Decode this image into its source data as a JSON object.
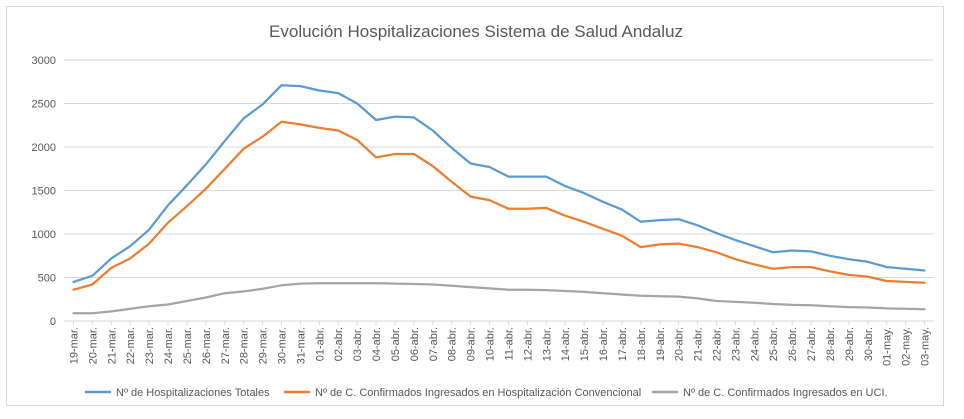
{
  "chart_data": {
    "type": "line",
    "title": "Evolución Hospitalizaciones Sistema de Salud Andaluz",
    "xlabel": "",
    "ylabel": "",
    "ylim": [
      0,
      3000
    ],
    "yticks": [
      0,
      500,
      1000,
      1500,
      2000,
      2500,
      3000
    ],
    "grid": true,
    "legend_position": "bottom",
    "categories": [
      "19-mar.",
      "20-mar.",
      "21-mar.",
      "22-mar.",
      "23-mar.",
      "24-mar.",
      "25-mar.",
      "26-mar.",
      "27-mar.",
      "28-mar.",
      "29-mar.",
      "30-mar.",
      "31-mar.",
      "01-abr.",
      "02-abr.",
      "03-abr.",
      "04-abr.",
      "05-abr.",
      "06-abr.",
      "07-abr.",
      "08-abr.",
      "09-abr.",
      "10-abr.",
      "11-abr.",
      "12-abr.",
      "13-abr.",
      "14-abr.",
      "15-abr.",
      "16-abr.",
      "17-abr.",
      "18-abr.",
      "19-abr.",
      "20-abr.",
      "21-abr.",
      "22-abr.",
      "23-abr.",
      "24-abr.",
      "25-abr.",
      "26-abr.",
      "27-abr.",
      "28-abr.",
      "29-abr.",
      "30-abr.",
      "01-may.",
      "02-may.",
      "03-may."
    ],
    "series": [
      {
        "name": "Nº de Hospitalizaciones Totales",
        "color": "#5b9bd5",
        "values": [
          450,
          520,
          720,
          860,
          1050,
          1330,
          1560,
          1800,
          2070,
          2330,
          2490,
          2710,
          2700,
          2650,
          2620,
          2500,
          2310,
          2350,
          2340,
          2190,
          1990,
          1810,
          1770,
          1660,
          1660,
          1660,
          1550,
          1470,
          1370,
          1280,
          1140,
          1160,
          1170,
          1100,
          1010,
          930,
          860,
          790,
          810,
          800,
          750,
          710,
          680,
          620,
          600,
          580
        ]
      },
      {
        "name": "Nº de C. Confirmados Ingresados en Hospitalización Convencional",
        "color": "#ed7d31",
        "values": [
          360,
          420,
          610,
          720,
          890,
          1130,
          1320,
          1520,
          1750,
          1980,
          2120,
          2290,
          2260,
          2220,
          2190,
          2080,
          1880,
          1920,
          1920,
          1780,
          1600,
          1430,
          1390,
          1290,
          1290,
          1300,
          1210,
          1140,
          1060,
          980,
          850,
          880,
          890,
          850,
          790,
          710,
          650,
          600,
          620,
          620,
          570,
          530,
          510,
          460,
          450,
          440
        ]
      },
      {
        "name": "Nº de C. Confirmados Ingresados en UCI.",
        "color": "#a5a5a5",
        "values": [
          90,
          90,
          110,
          140,
          170,
          190,
          230,
          270,
          320,
          340,
          370,
          410,
          430,
          435,
          435,
          435,
          435,
          430,
          425,
          420,
          405,
          390,
          375,
          360,
          360,
          355,
          345,
          335,
          320,
          305,
          290,
          285,
          280,
          260,
          230,
          220,
          210,
          195,
          185,
          180,
          170,
          160,
          155,
          145,
          140,
          135
        ]
      }
    ]
  }
}
